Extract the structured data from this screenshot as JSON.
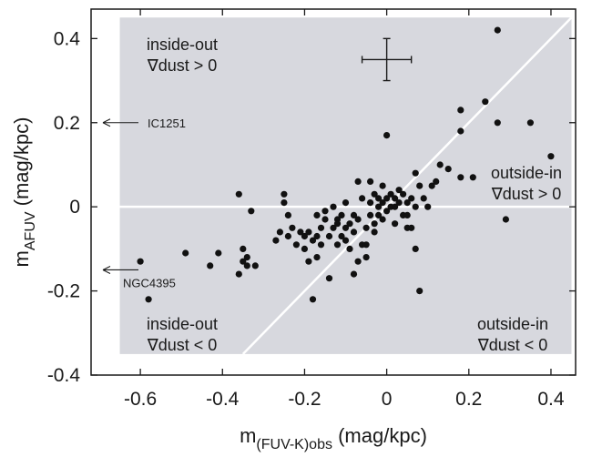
{
  "chart_data": {
    "type": "scatter",
    "xlabel": {
      "main": "m",
      "sub": "(FUV-K)obs",
      "unit": " (mag/kpc)"
    },
    "ylabel": {
      "main": "m",
      "sub": "AFUV",
      "unit": " (mag/kpc)"
    },
    "xlim": [
      -0.72,
      0.46
    ],
    "ylim": [
      -0.4,
      0.47
    ],
    "x_ticks": [
      -0.6,
      -0.4,
      -0.2,
      0,
      0.2,
      0.4
    ],
    "x_tick_labels": [
      "-0.6",
      "-0.4",
      "-0.2",
      "0",
      "0.2",
      "0.4"
    ],
    "y_ticks": [
      -0.4,
      -0.2,
      0,
      0.2,
      0.4
    ],
    "y_tick_labels": [
      "-0.4",
      "-0.2",
      "0",
      "0.2",
      "0.4"
    ],
    "grid": false,
    "colors": {
      "shade": "#d7d8de",
      "points": "#111111",
      "lines": "#ffffff",
      "axes": "#1a1a1a"
    },
    "shaded_region": {
      "x": [
        -0.65,
        0.45
      ],
      "y": [
        -0.35,
        0.45
      ]
    },
    "reference_lines": [
      {
        "kind": "horizontal",
        "y": 0
      },
      {
        "kind": "identity",
        "slope": 1,
        "intercept": 0
      }
    ],
    "error_bar": {
      "x": 0,
      "y": 0.35,
      "xerr": 0.06,
      "yerr": 0.05
    },
    "region_labels": [
      {
        "lines": [
          "inside-out",
          "∇dust > 0"
        ],
        "position": "top-left"
      },
      {
        "lines": [
          "outside-in",
          "∇dust > 0"
        ],
        "position": "right-middle"
      },
      {
        "lines": [
          "inside-out",
          "∇dust < 0"
        ],
        "position": "bottom-left"
      },
      {
        "lines": [
          "outside-in",
          "∇dust < 0"
        ],
        "position": "bottom-right"
      }
    ],
    "annotations": [
      {
        "text": "IC1251",
        "y": 0.2
      },
      {
        "text": "NGC4395",
        "y": -0.15
      }
    ],
    "points": [
      [
        -0.6,
        -0.13
      ],
      [
        -0.58,
        -0.22
      ],
      [
        -0.49,
        -0.11
      ],
      [
        -0.43,
        -0.14
      ],
      [
        -0.41,
        -0.11
      ],
      [
        -0.36,
        -0.16
      ],
      [
        -0.36,
        0.03
      ],
      [
        -0.35,
        -0.13
      ],
      [
        -0.34,
        -0.14
      ],
      [
        -0.35,
        -0.1
      ],
      [
        -0.34,
        -0.12
      ],
      [
        -0.32,
        -0.14
      ],
      [
        -0.33,
        -0.01
      ],
      [
        -0.27,
        -0.08
      ],
      [
        -0.25,
        0.03
      ],
      [
        -0.26,
        -0.06
      ],
      [
        -0.24,
        -0.07
      ],
      [
        -0.25,
        0.01
      ],
      [
        -0.24,
        -0.02
      ],
      [
        -0.23,
        -0.05
      ],
      [
        -0.22,
        -0.09
      ],
      [
        -0.21,
        -0.06
      ],
      [
        -0.2,
        -0.07
      ],
      [
        -0.2,
        -0.1
      ],
      [
        -0.19,
        -0.06
      ],
      [
        -0.18,
        -0.08
      ],
      [
        -0.18,
        -0.22
      ],
      [
        -0.17,
        -0.12
      ],
      [
        -0.17,
        -0.07
      ],
      [
        -0.16,
        -0.09
      ],
      [
        -0.16,
        -0.05
      ],
      [
        -0.15,
        -0.01
      ],
      [
        -0.15,
        -0.03
      ],
      [
        -0.14,
        -0.17
      ],
      [
        -0.14,
        -0.07
      ],
      [
        -0.13,
        0.0
      ],
      [
        -0.13,
        -0.05
      ],
      [
        -0.12,
        -0.03
      ],
      [
        -0.12,
        -0.09
      ],
      [
        -0.11,
        -0.02
      ],
      [
        -0.11,
        -0.07
      ],
      [
        -0.1,
        -0.05
      ],
      [
        -0.1,
        0.01
      ],
      [
        -0.09,
        -0.1
      ],
      [
        -0.09,
        -0.04
      ],
      [
        -0.08,
        -0.02
      ],
      [
        -0.08,
        -0.06
      ],
      [
        -0.07,
        0.06
      ],
      [
        -0.07,
        -0.03
      ],
      [
        -0.06,
        -0.09
      ],
      [
        -0.06,
        0.02
      ],
      [
        -0.05,
        -0.05
      ],
      [
        -0.05,
        -0.12
      ],
      [
        -0.04,
        0.01
      ],
      [
        -0.04,
        -0.02
      ],
      [
        -0.03,
        0.03
      ],
      [
        -0.03,
        -0.06
      ],
      [
        -0.03,
        -0.04
      ],
      [
        -0.02,
        0.0
      ],
      [
        -0.02,
        0.02
      ],
      [
        -0.02,
        -0.02
      ],
      [
        -0.01,
        0.01
      ],
      [
        -0.01,
        0.05
      ],
      [
        -0.01,
        -0.03
      ],
      [
        0.0,
        0.02
      ],
      [
        0.0,
        -0.01
      ],
      [
        0.0,
        0.17
      ],
      [
        0.01,
        0.03
      ],
      [
        0.01,
        0.0
      ],
      [
        0.02,
        0.02
      ],
      [
        0.02,
        -0.04
      ],
      [
        0.03,
        0.01
      ],
      [
        0.03,
        0.04
      ],
      [
        0.04,
        -0.02
      ],
      [
        0.04,
        0.03
      ],
      [
        0.05,
        0.01
      ],
      [
        0.05,
        -0.05
      ],
      [
        0.06,
        0.02
      ],
      [
        0.07,
        0.0
      ],
      [
        0.07,
        0.08
      ],
      [
        0.07,
        -0.1
      ],
      [
        0.08,
        0.05
      ],
      [
        0.08,
        -0.2
      ],
      [
        0.09,
        0.02
      ],
      [
        0.1,
        0.0
      ],
      [
        0.11,
        0.05
      ],
      [
        0.12,
        0.06
      ],
      [
        0.13,
        0.1
      ],
      [
        0.15,
        0.09
      ],
      [
        0.18,
        0.23
      ],
      [
        0.18,
        0.07
      ],
      [
        0.18,
        0.18
      ],
      [
        0.21,
        0.07
      ],
      [
        0.24,
        0.25
      ],
      [
        0.27,
        0.42
      ],
      [
        0.27,
        0.2
      ],
      [
        0.29,
        -0.03
      ],
      [
        0.35,
        0.2
      ],
      [
        0.4,
        0.12
      ],
      [
        -0.07,
        -0.13
      ],
      [
        -0.08,
        -0.16
      ],
      [
        -0.05,
        -0.09
      ],
      [
        -0.12,
        -0.04
      ],
      [
        -0.1,
        -0.08
      ],
      [
        0.02,
        0.0
      ],
      [
        0.05,
        -0.02
      ],
      [
        -0.17,
        -0.02
      ],
      [
        -0.19,
        -0.13
      ],
      [
        -0.04,
        0.06
      ],
      [
        0.06,
        -0.05
      ]
    ]
  }
}
